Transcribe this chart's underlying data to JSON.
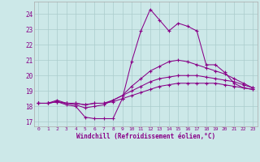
{
  "xlabel": "Windchill (Refroidissement éolien,°C)",
  "background_color": "#cce8e8",
  "grid_color": "#aacccc",
  "line_color": "#880088",
  "xlim": [
    -0.5,
    23.5
  ],
  "ylim": [
    16.7,
    24.8
  ],
  "xticks": [
    0,
    1,
    2,
    3,
    4,
    5,
    6,
    7,
    8,
    9,
    10,
    11,
    12,
    13,
    14,
    15,
    16,
    17,
    18,
    19,
    20,
    21,
    22,
    23
  ],
  "yticks": [
    17,
    18,
    19,
    20,
    21,
    22,
    23,
    24
  ],
  "series": {
    "line1": [
      18.2,
      18.2,
      18.3,
      18.1,
      18.0,
      17.3,
      17.2,
      17.2,
      17.2,
      18.5,
      20.9,
      22.9,
      24.3,
      23.6,
      22.9,
      23.4,
      23.2,
      22.9,
      20.7,
      20.7,
      20.2,
      19.5,
      19.2,
      19.1
    ],
    "line2": [
      18.2,
      18.2,
      18.4,
      18.2,
      18.1,
      17.9,
      18.0,
      18.1,
      18.4,
      18.7,
      19.3,
      19.8,
      20.3,
      20.6,
      20.9,
      21.0,
      20.9,
      20.7,
      20.5,
      20.3,
      20.1,
      19.8,
      19.5,
      19.2
    ],
    "line3": [
      18.2,
      18.2,
      18.3,
      18.2,
      18.2,
      18.1,
      18.2,
      18.2,
      18.4,
      18.7,
      19.0,
      19.3,
      19.6,
      19.8,
      19.9,
      20.0,
      20.0,
      20.0,
      19.9,
      19.8,
      19.7,
      19.6,
      19.4,
      19.2
    ],
    "line4": [
      18.2,
      18.2,
      18.3,
      18.2,
      18.2,
      18.1,
      18.2,
      18.2,
      18.3,
      18.5,
      18.7,
      18.9,
      19.1,
      19.3,
      19.4,
      19.5,
      19.5,
      19.5,
      19.5,
      19.5,
      19.4,
      19.3,
      19.2,
      19.1
    ]
  }
}
